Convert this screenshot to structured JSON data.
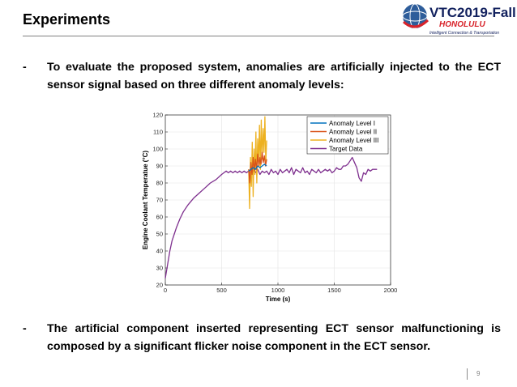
{
  "slide": {
    "title": "Experiments",
    "page_number": "9",
    "bullet_dash": "-",
    "bullets": [
      "To evaluate the proposed system, anomalies are artificially injected to the ECT sensor signal based on three different anomaly levels:",
      "The artificial component inserted representing ECT sensor malfunctioning is composed by a significant flicker noise component in the ECT sensor."
    ]
  },
  "logo": {
    "main": "VTC2019-Fall",
    "city": "HONOLULU",
    "tagline": "Intelligent Connection & Transportation",
    "colors": {
      "navy": "#12215e",
      "red": "#d8232a",
      "globe": "#2e5d9a"
    }
  },
  "chart_data": {
    "type": "line",
    "xlabel": "Time (s)",
    "ylabel": "Engine Coolant Temperatue (°C)",
    "xlim": [
      0,
      2000
    ],
    "ylim": [
      20,
      120
    ],
    "xticks": [
      "0",
      "500",
      "1000",
      "1500",
      "2000"
    ],
    "yticks": [
      "20",
      "30",
      "40",
      "50",
      "60",
      "70",
      "80",
      "90",
      "100",
      "110",
      "120"
    ],
    "grid": true,
    "legend_position": "top-right",
    "series": [
      {
        "name": "Anomaly Level I",
        "color": "#0072bd",
        "x": [
          740,
          760,
          780,
          800,
          820,
          840,
          860,
          880,
          900
        ],
        "y": [
          87,
          88,
          89,
          88,
          90,
          89,
          90,
          91,
          90
        ]
      },
      {
        "name": "Anomaly Level II",
        "color": "#d95319",
        "x": [
          740,
          750,
          760,
          770,
          780,
          790,
          800,
          810,
          820,
          830,
          840,
          850,
          860,
          870,
          880,
          890,
          900
        ],
        "y": [
          88,
          80,
          92,
          85,
          95,
          87,
          94,
          88,
          97,
          90,
          95,
          91,
          98,
          92,
          96,
          90,
          94
        ]
      },
      {
        "name": "Anomaly Level III",
        "color": "#edb120",
        "x": [
          740,
          748,
          756,
          764,
          772,
          780,
          788,
          796,
          804,
          812,
          820,
          828,
          836,
          844,
          852,
          860,
          868,
          876,
          884,
          892,
          900
        ],
        "y": [
          88,
          65,
          95,
          78,
          104,
          72,
          100,
          85,
          110,
          80,
          106,
          92,
          114,
          88,
          117,
          94,
          112,
          98,
          119,
          92,
          105
        ]
      },
      {
        "name": "Target Data",
        "color": "#7e2f8e",
        "x": [
          0,
          20,
          40,
          60,
          80,
          100,
          130,
          160,
          200,
          250,
          300,
          350,
          400,
          450,
          500,
          520,
          540,
          560,
          580,
          600,
          620,
          640,
          660,
          680,
          700,
          720,
          740,
          760,
          780,
          800,
          820,
          840,
          860,
          880,
          900,
          920,
          940,
          960,
          980,
          1000,
          1020,
          1040,
          1060,
          1080,
          1100,
          1120,
          1140,
          1160,
          1180,
          1200,
          1220,
          1240,
          1260,
          1280,
          1300,
          1320,
          1340,
          1360,
          1380,
          1400,
          1420,
          1440,
          1460,
          1480,
          1500,
          1520,
          1540,
          1560,
          1580,
          1600,
          1620,
          1640,
          1660,
          1680,
          1700,
          1720,
          1740,
          1760,
          1780,
          1800,
          1820,
          1840,
          1860,
          1880
        ],
        "y": [
          24,
          32,
          40,
          46,
          50,
          54,
          59,
          63,
          67,
          71,
          74,
          77,
          80,
          82,
          85,
          86,
          87,
          86,
          87,
          86,
          87,
          86,
          87,
          86,
          87,
          86,
          87,
          85,
          87,
          86,
          88,
          85,
          87,
          86,
          87,
          85,
          88,
          86,
          87,
          85,
          88,
          86,
          87,
          88,
          86,
          89,
          85,
          88,
          87,
          86,
          89,
          86,
          87,
          85,
          88,
          87,
          86,
          88,
          86,
          87,
          88,
          87,
          88,
          86,
          87,
          89,
          88,
          88,
          90,
          90,
          91,
          93,
          95,
          92,
          89,
          83,
          81,
          86,
          85,
          88,
          87,
          88,
          88,
          88
        ]
      }
    ]
  }
}
